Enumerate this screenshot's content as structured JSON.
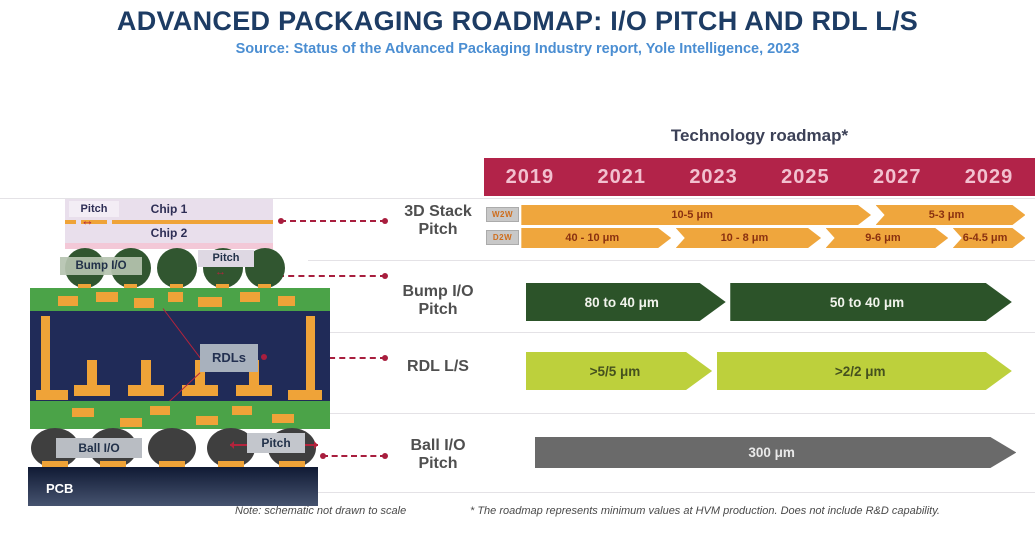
{
  "header": {
    "title": "ADVANCED PACKAGING ROADMAP: I/O PITCH AND RDL L/S",
    "subtitle": "Source: Status of the Advanced Packaging Industry report, Yole Intelligence, 2023"
  },
  "roadmap": {
    "heading": "Technology roadmap*",
    "years": [
      "2019",
      "2021",
      "2023",
      "2025",
      "2027",
      "2029"
    ],
    "row_labels": [
      "3D Stack Pitch",
      "Bump I/O Pitch",
      "RDL L/S",
      "Ball I/O Pitch"
    ],
    "stack_tags": [
      "W2W",
      "D2W"
    ]
  },
  "schematic": {
    "pitch_top": "Pitch",
    "chip1": "Chip 1",
    "chip2": "Chip 2",
    "bump_io": "Bump I/O",
    "pitch_bump": "Pitch",
    "rdls": "RDLs",
    "ball_io": "Ball I/O",
    "pitch_ball": "Pitch",
    "pcb": "PCB"
  },
  "notes": {
    "schematic": "Note: schematic not drawn to scale",
    "roadmap": "* The roadmap represents minimum values at HVM production. Does not include R&D capability."
  },
  "icons": {
    "double_arrow": "↔"
  },
  "colors": {
    "year_bar_crimson": "#b22349",
    "arrow_orange": "#efa63d",
    "arrow_dark_green": "#2c5329",
    "arrow_lime": "#bdd03c",
    "arrow_gray": "#6a6a6a",
    "leader_red": "#a81e3e",
    "title_navy": "#1d3c64",
    "subtitle_blue": "#4b8ed2"
  },
  "chart_data": {
    "type": "timeline",
    "title": "Technology roadmap*",
    "axis_years": [
      2019,
      2021,
      2023,
      2025,
      2027,
      2029
    ],
    "axis_range": [
      2018,
      2030
    ],
    "rows": [
      {
        "id": "w2w",
        "group": "3D Stack Pitch",
        "tag": "W2W",
        "color": "orange",
        "segments": [
          {
            "label": "10-5 μm",
            "start": 2018.8,
            "end": 2026.5
          },
          {
            "label": "5-3 μm",
            "start": 2026.6,
            "end": 2029.9
          }
        ]
      },
      {
        "id": "d2w",
        "group": "3D Stack Pitch",
        "tag": "D2W",
        "color": "orange",
        "segments": [
          {
            "label": "40 - 10 μm",
            "start": 2018.8,
            "end": 2022.1
          },
          {
            "label": "10 - 8 μm",
            "start": 2022.2,
            "end": 2025.4
          },
          {
            "label": "9-6 μm",
            "start": 2025.5,
            "end": 2028.2
          },
          {
            "label": "6-4.5 μm",
            "start": 2028.3,
            "end": 2029.9
          }
        ]
      },
      {
        "id": "bump",
        "group": "Bump I/O Pitch",
        "color": "dark_green",
        "segments": [
          {
            "label": "80 to 40 μm",
            "start": 2018.9,
            "end": 2023.3
          },
          {
            "label": "50 to 40 μm",
            "start": 2023.4,
            "end": 2029.6
          }
        ]
      },
      {
        "id": "rdl",
        "group": "RDL L/S",
        "color": "lime",
        "segments": [
          {
            "label": ">5/5 μm",
            "start": 2018.9,
            "end": 2023.0
          },
          {
            "label": ">2/2 μm",
            "start": 2023.1,
            "end": 2029.6
          }
        ]
      },
      {
        "id": "ball",
        "group": "Ball I/O Pitch",
        "color": "gray",
        "segments": [
          {
            "label": "300 μm",
            "start": 2019.1,
            "end": 2029.7
          }
        ]
      }
    ]
  }
}
